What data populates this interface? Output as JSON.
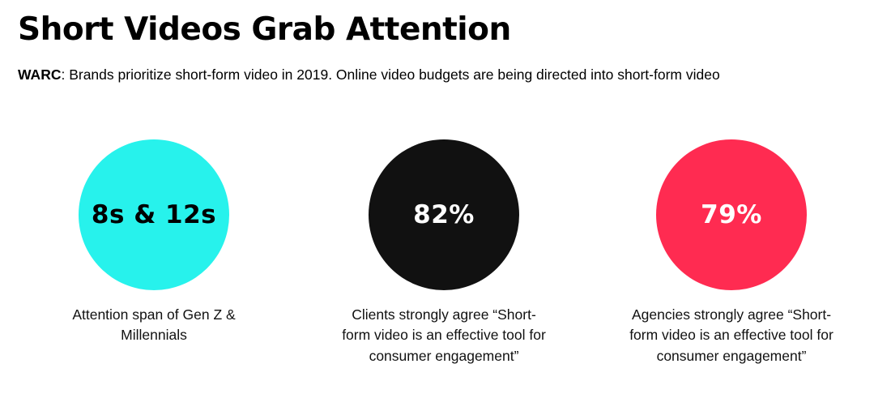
{
  "title": "Short Videos Grab Attention",
  "subtitle": {
    "source": "WARC",
    "text": ": Brands prioritize short-form video in 2019. Online video budgets are being directed into short-form video"
  },
  "stats": [
    {
      "value": "8s & 12s",
      "caption": "Attention span of Gen Z & Millennials",
      "circle_color": "#27F2EC",
      "value_color": "#000000"
    },
    {
      "value": "82%",
      "caption": "Clients strongly agree “Short-form video is an effective tool for consumer engagement”",
      "circle_color": "#111111",
      "value_color": "#FFFFFF"
    },
    {
      "value": "79%",
      "caption": "Agencies strongly agree “Short-form video is an effective tool for consumer engagement”",
      "circle_color": "#FF2B51",
      "value_color": "#FFFFFF"
    }
  ]
}
